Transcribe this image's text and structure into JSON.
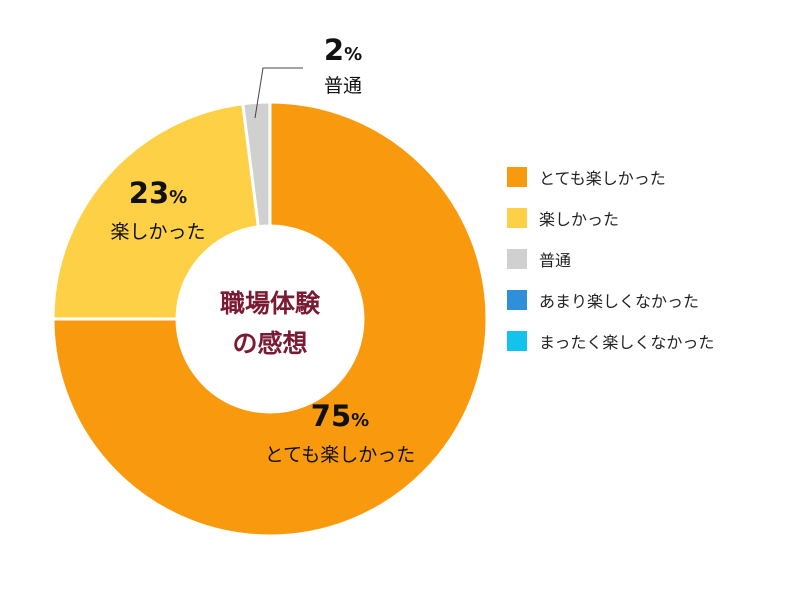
{
  "chart_data": {
    "type": "pie",
    "center_title": [
      "職場体験",
      "の感想"
    ],
    "categories": [
      "とても楽しかった",
      "楽しかった",
      "普通",
      "あまり楽しくなかった",
      "まったく楽しくなかった"
    ],
    "values": [
      75,
      23,
      2,
      0,
      0
    ],
    "percent_sign": "%",
    "colors": [
      "#f99a0e",
      "#fdd046",
      "#d0d0d0",
      "#2f8fd8",
      "#14c2ee"
    ],
    "legend_position": "right"
  }
}
